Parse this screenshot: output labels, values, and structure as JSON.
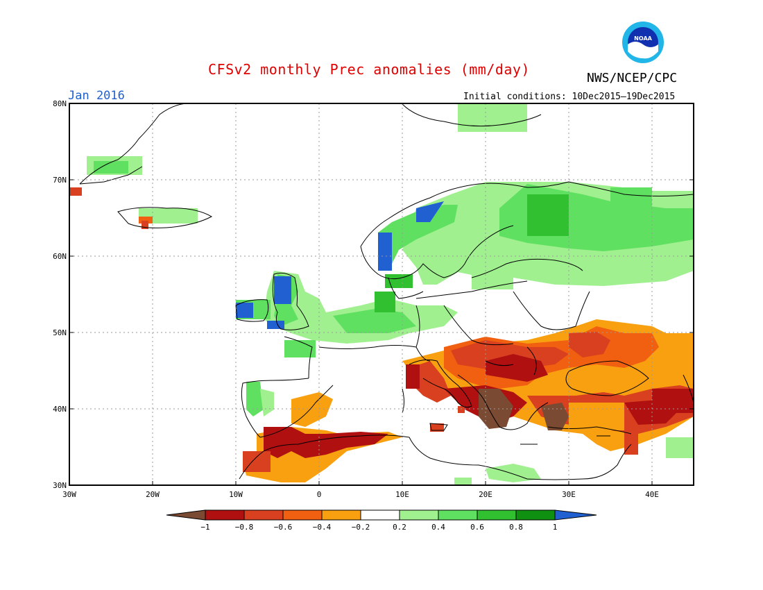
{
  "title": "CFSv2 monthly Prec anomalies (mm/day)",
  "org": "NWS/NCEP/CPC",
  "logo_text": "NOAA",
  "month": "Jan 2016",
  "initial_conditions": "Initial conditions: 10Dec2015–19Dec2015",
  "lat_labels": [
    "80N",
    "70N",
    "60N",
    "50N",
    "40N",
    "30N"
  ],
  "lon_labels": [
    "30W",
    "20W",
    "10W",
    "0",
    "10E",
    "20E",
    "30E",
    "40E"
  ],
  "colorbar": {
    "labels": [
      "−1",
      "−0.8",
      "−0.6",
      "−0.4",
      "−0.2",
      "0.2",
      "0.4",
      "0.6",
      "0.8",
      "1"
    ],
    "colors": [
      "#7a4a32",
      "#b01010",
      "#d84020",
      "#f06010",
      "#f8a010",
      "#ffffff",
      "#a0f090",
      "#60e060",
      "#30c030",
      "#109010",
      "#2060d0"
    ]
  },
  "colors": {
    "title": "#e00000",
    "month": "#1f5fd0",
    "coast": "#000000"
  }
}
